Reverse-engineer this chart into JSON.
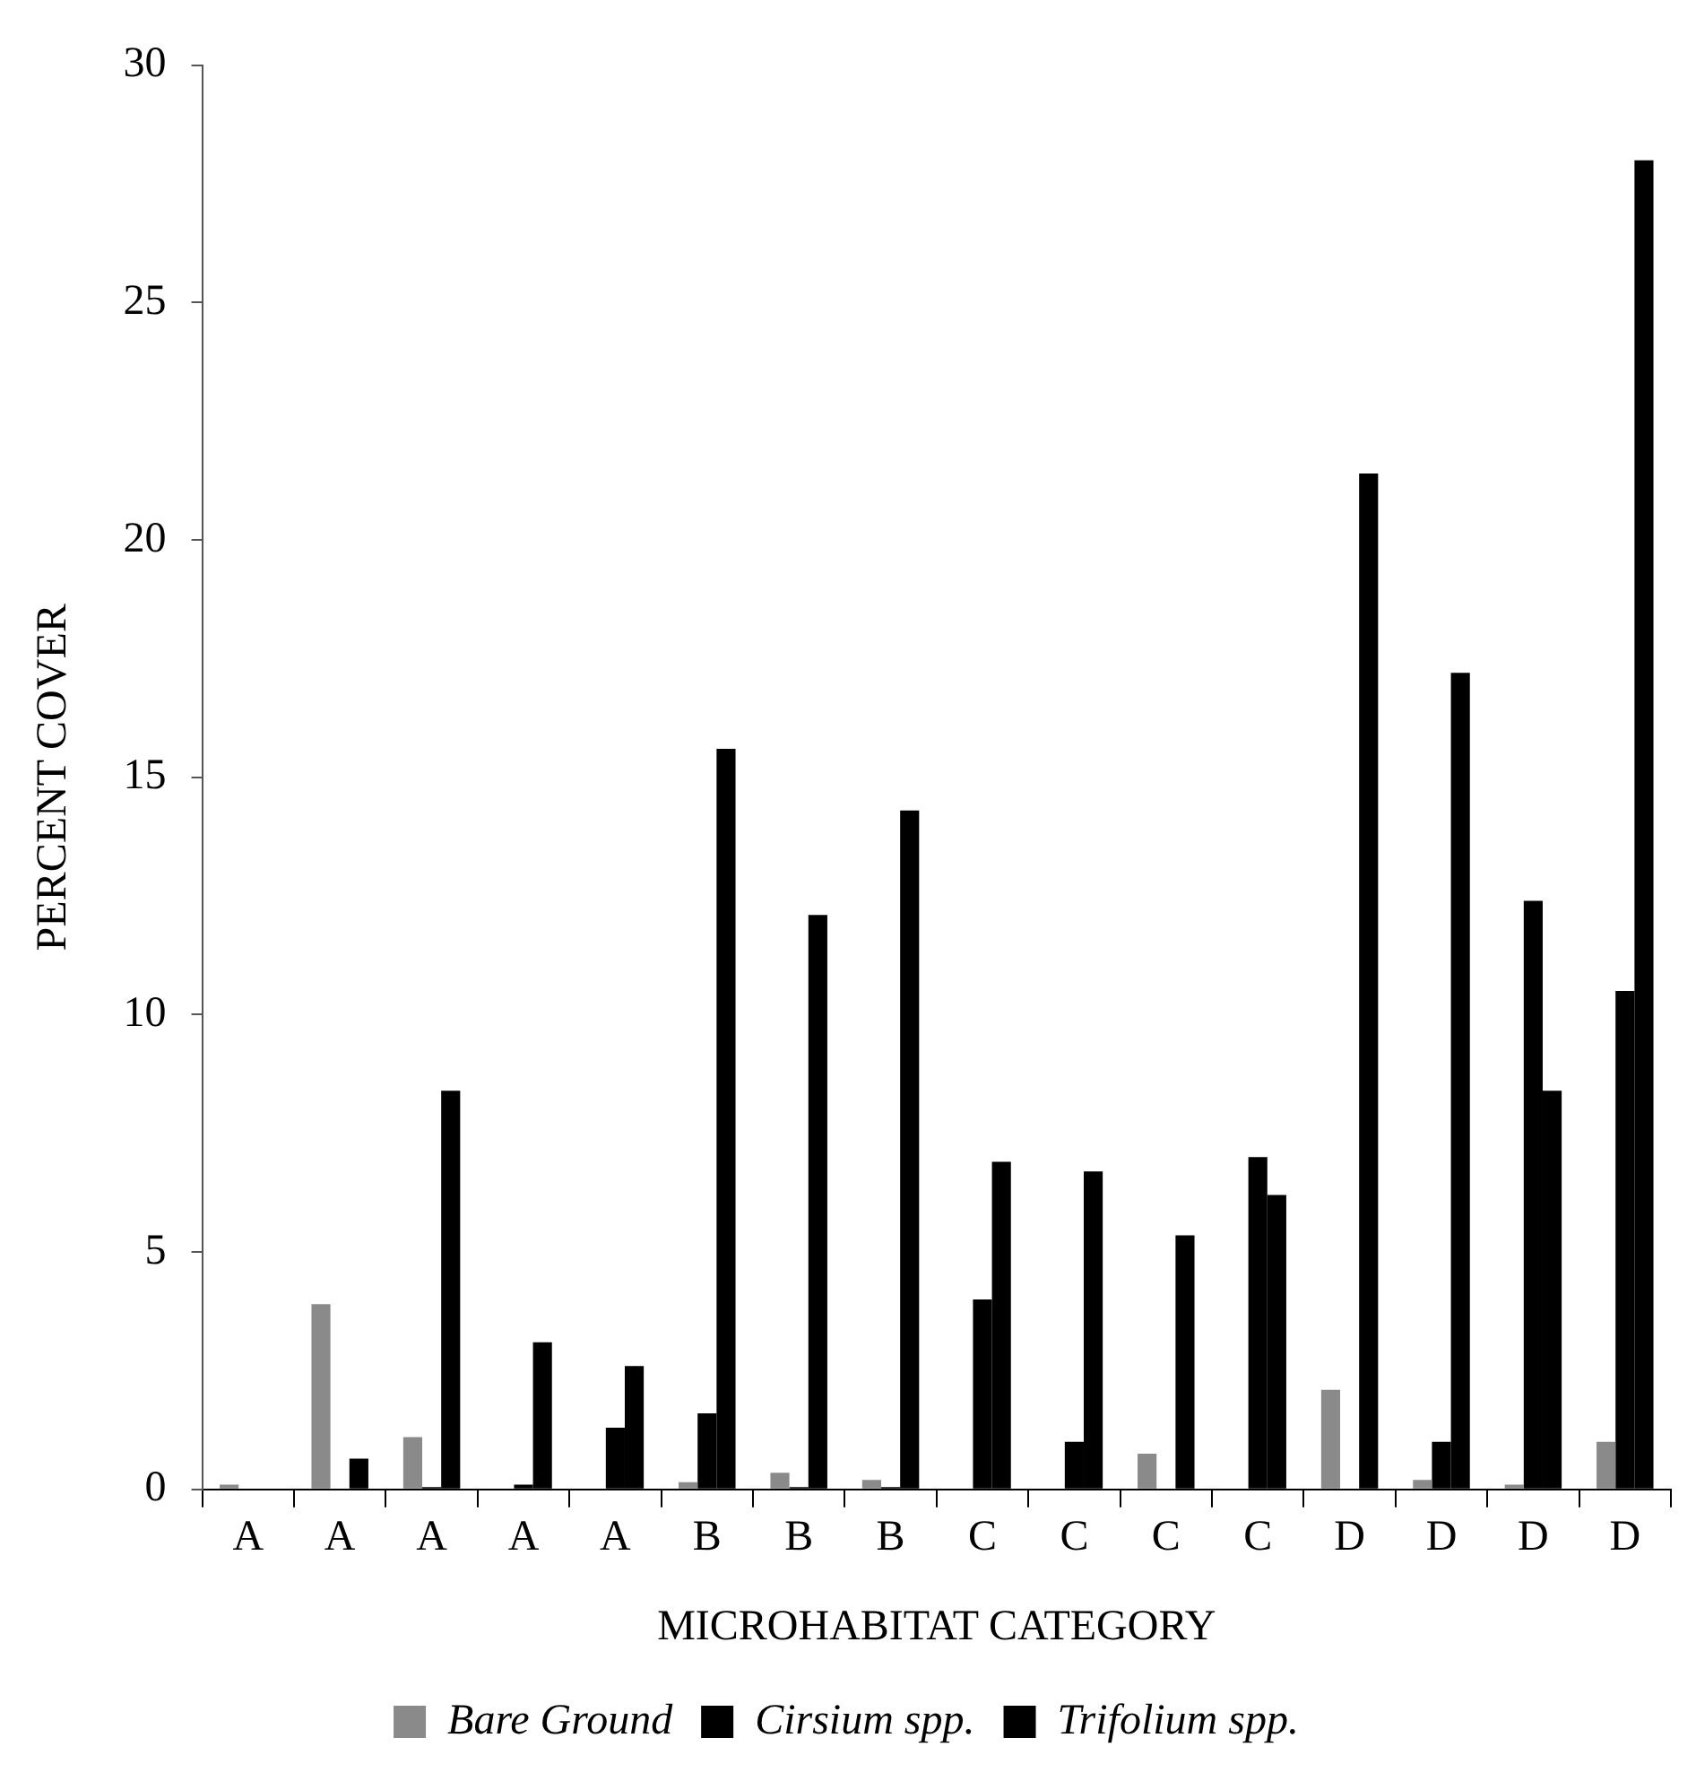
{
  "chart_data": {
    "type": "bar",
    "xlabel": "MICROHABITAT CATEGORY",
    "ylabel": "PERCENT COVER",
    "categories": [
      "A",
      "A",
      "A",
      "A",
      "A",
      "B",
      "B",
      "B",
      "C",
      "C",
      "C",
      "C",
      "D",
      "D",
      "D",
      "D"
    ],
    "series": [
      {
        "name": "Bare Ground",
        "color": "#8a8a8a",
        "values": [
          0.1,
          3.9,
          1.1,
          0,
          0,
          0.15,
          0.35,
          0.2,
          0,
          0,
          0.75,
          0,
          2.1,
          0.2,
          0.1,
          1.0
        ]
      },
      {
        "name": "Cirsium spp.",
        "color": "#000000",
        "values": [
          0,
          0,
          0.05,
          0.1,
          1.3,
          1.6,
          0.05,
          0.05,
          4.0,
          1.0,
          0,
          7.0,
          0,
          1.0,
          12.4,
          10.5
        ]
      },
      {
        "name": "Trifolium spp.",
        "color": "#000000",
        "values": [
          0,
          0.65,
          8.4,
          3.1,
          2.6,
          15.6,
          12.1,
          14.3,
          6.9,
          6.7,
          5.35,
          6.2,
          21.4,
          17.2,
          8.4,
          28.0
        ]
      }
    ],
    "ylim": [
      0,
      30
    ],
    "yticks": [
      0,
      5,
      10,
      15,
      20,
      25,
      30
    ],
    "grid": false,
    "legend": "bottom"
  }
}
